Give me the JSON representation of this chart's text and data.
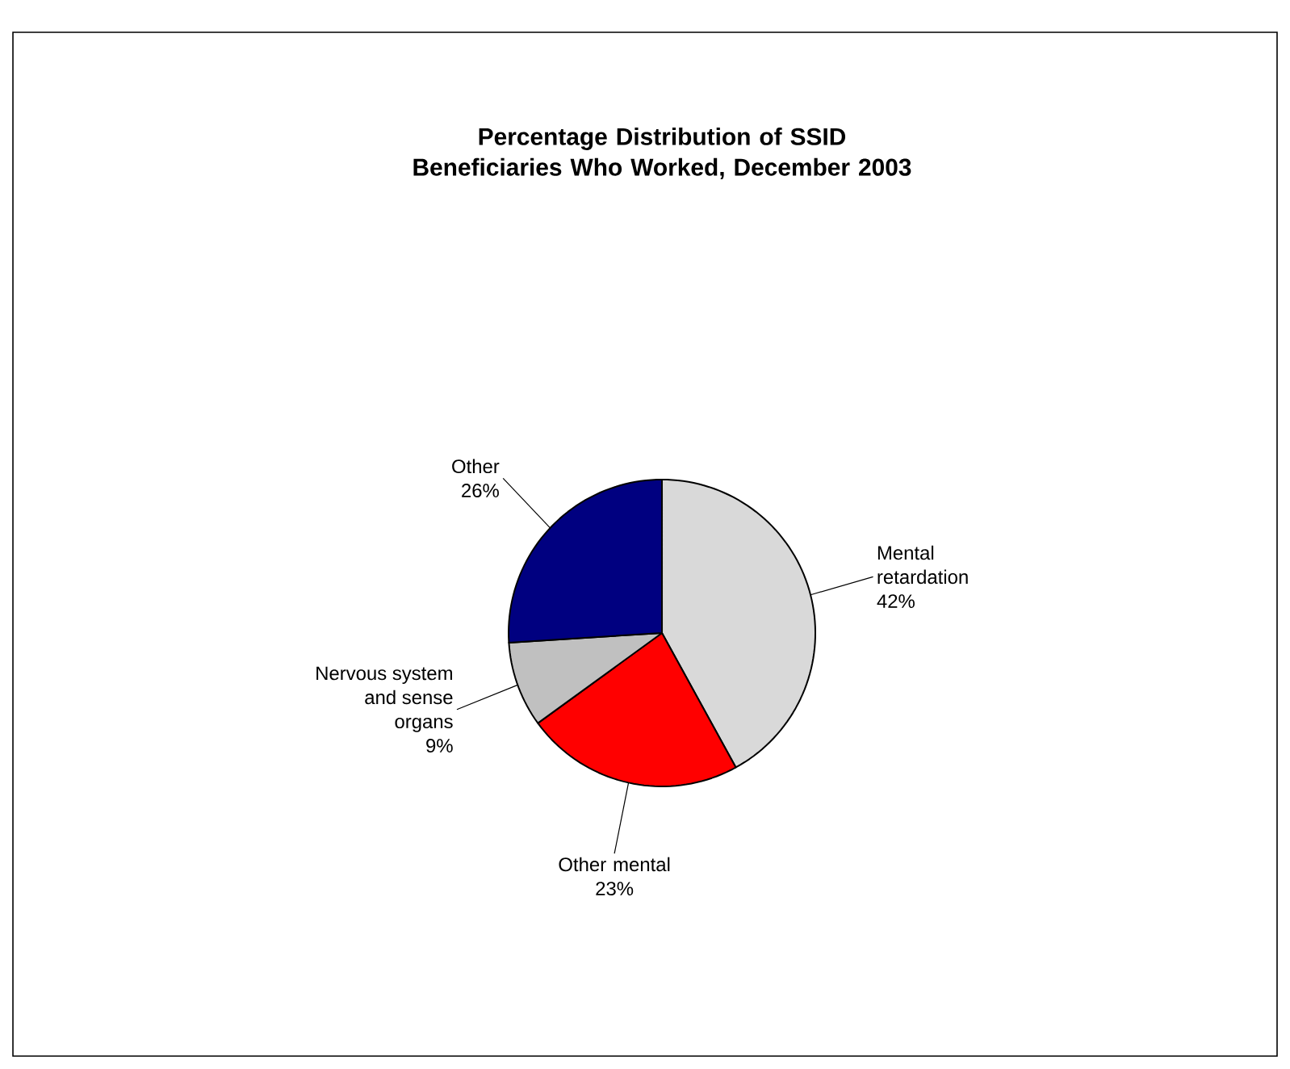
{
  "chart_data": {
    "type": "pie",
    "title": "Percentage Distribution of SSID Beneficiaries Who Worked, December 2003",
    "categories": [
      "Mental retardation",
      "Other mental",
      "Nervous system and sense organs",
      "Other"
    ],
    "values": [
      42,
      23,
      9,
      26
    ],
    "value_labels": [
      "42%",
      "23%",
      "9%",
      "26%"
    ],
    "colors": [
      "#d9d9d9",
      "#ff0000",
      "#c0c0c0",
      "#000080"
    ]
  }
}
